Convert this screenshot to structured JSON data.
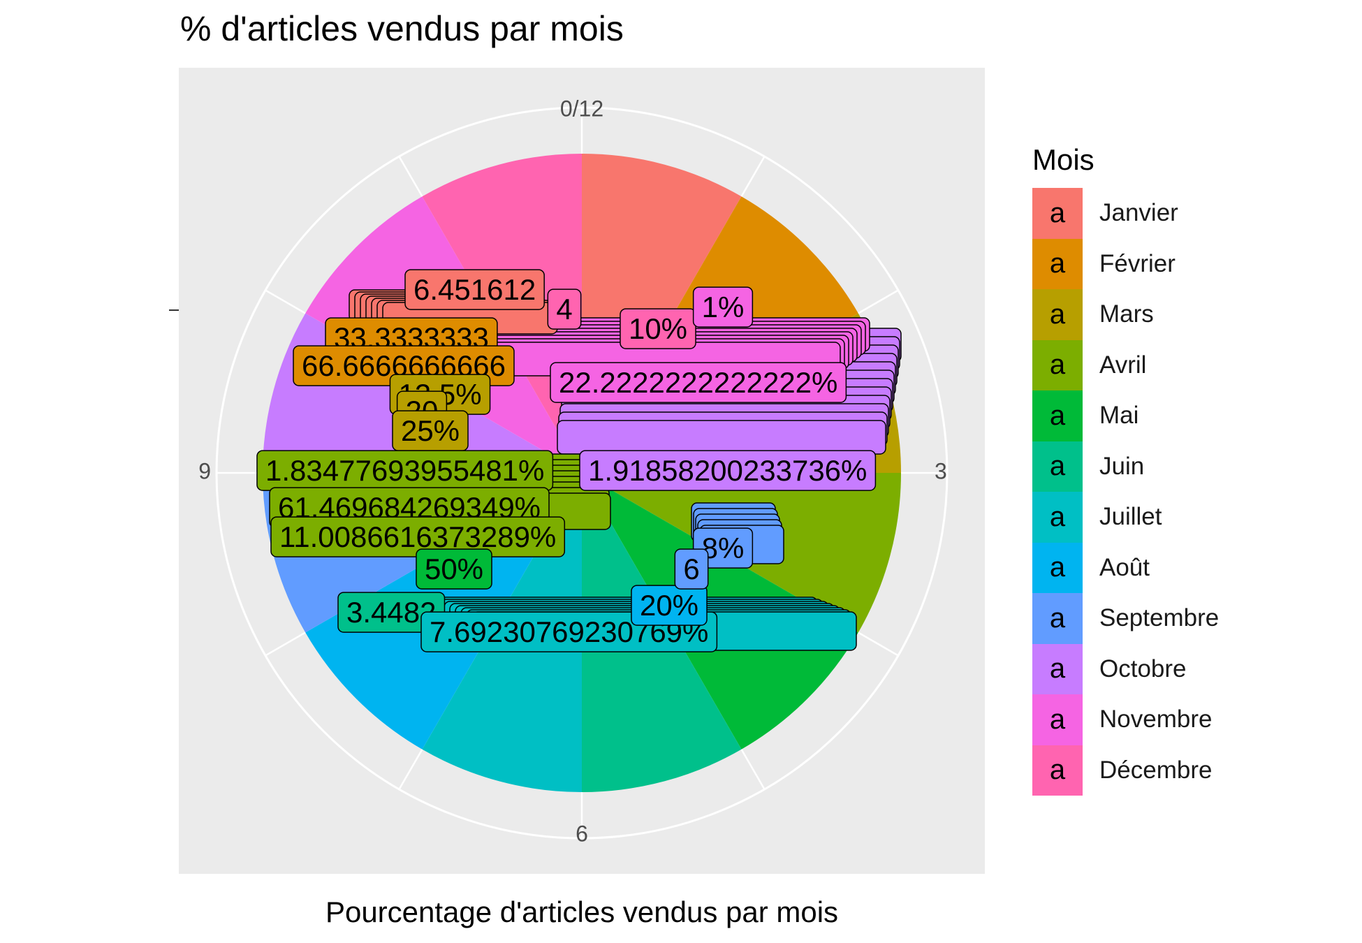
{
  "chart_data": {
    "type": "pie",
    "title": "% d'articles vendus par mois",
    "xlabel": "Pourcentage d'articles vendus par mois",
    "ylabel": "",
    "legend_title": "Mois",
    "legend_position": "right",
    "grid": true,
    "theta_ticks": [
      "0/12",
      "3",
      "6",
      "9"
    ],
    "categories": [
      "Janvier",
      "Février",
      "Mars",
      "Avril",
      "Mai",
      "Juin",
      "Juillet",
      "Août",
      "Septembre",
      "Octobre",
      "Novembre",
      "Décembre"
    ],
    "values": [
      1,
      1,
      1,
      1,
      1,
      1,
      1,
      1,
      1,
      1,
      1,
      1
    ],
    "colors": [
      "#F8766D",
      "#DE8C00",
      "#B79F00",
      "#7CAE00",
      "#00BA38",
      "#00C08B",
      "#00BFC4",
      "#00B4F0",
      "#619CFF",
      "#C77CFF",
      "#F564E3",
      "#FF64B0"
    ],
    "labels": [
      {
        "text": "6.451612",
        "month": "Janvier"
      },
      {
        "text": "33.3333333",
        "month": "Février"
      },
      {
        "text": "66.6666666666",
        "month": "Février"
      },
      {
        "text": "12.5%",
        "month": "Mars"
      },
      {
        "text": "20",
        "month": "Mars"
      },
      {
        "text": "25%",
        "month": "Mars"
      },
      {
        "text": "1.83477693955481%",
        "month": "Avril"
      },
      {
        "text": "61.469684269349%",
        "month": "Avril"
      },
      {
        "text": "11.0086616373289%",
        "month": "Avril"
      },
      {
        "text": "50%",
        "month": "Mai"
      },
      {
        "text": "3.4482",
        "month": "Juin"
      },
      {
        "text": "7.69230769230769%",
        "month": "Juillet"
      },
      {
        "text": "20%",
        "month": "Août"
      },
      {
        "text": "8%",
        "month": "Septembre"
      },
      {
        "text": "6",
        "month": "Septembre"
      },
      {
        "text": "1.91858200233736%",
        "month": "Octobre"
      },
      {
        "text": "22.2222222222222%",
        "month": "Novembre"
      },
      {
        "text": "10%",
        "month": "Décembre"
      },
      {
        "text": "4",
        "month": "Décembre"
      },
      {
        "text": "1%",
        "month": "Novembre"
      }
    ]
  }
}
